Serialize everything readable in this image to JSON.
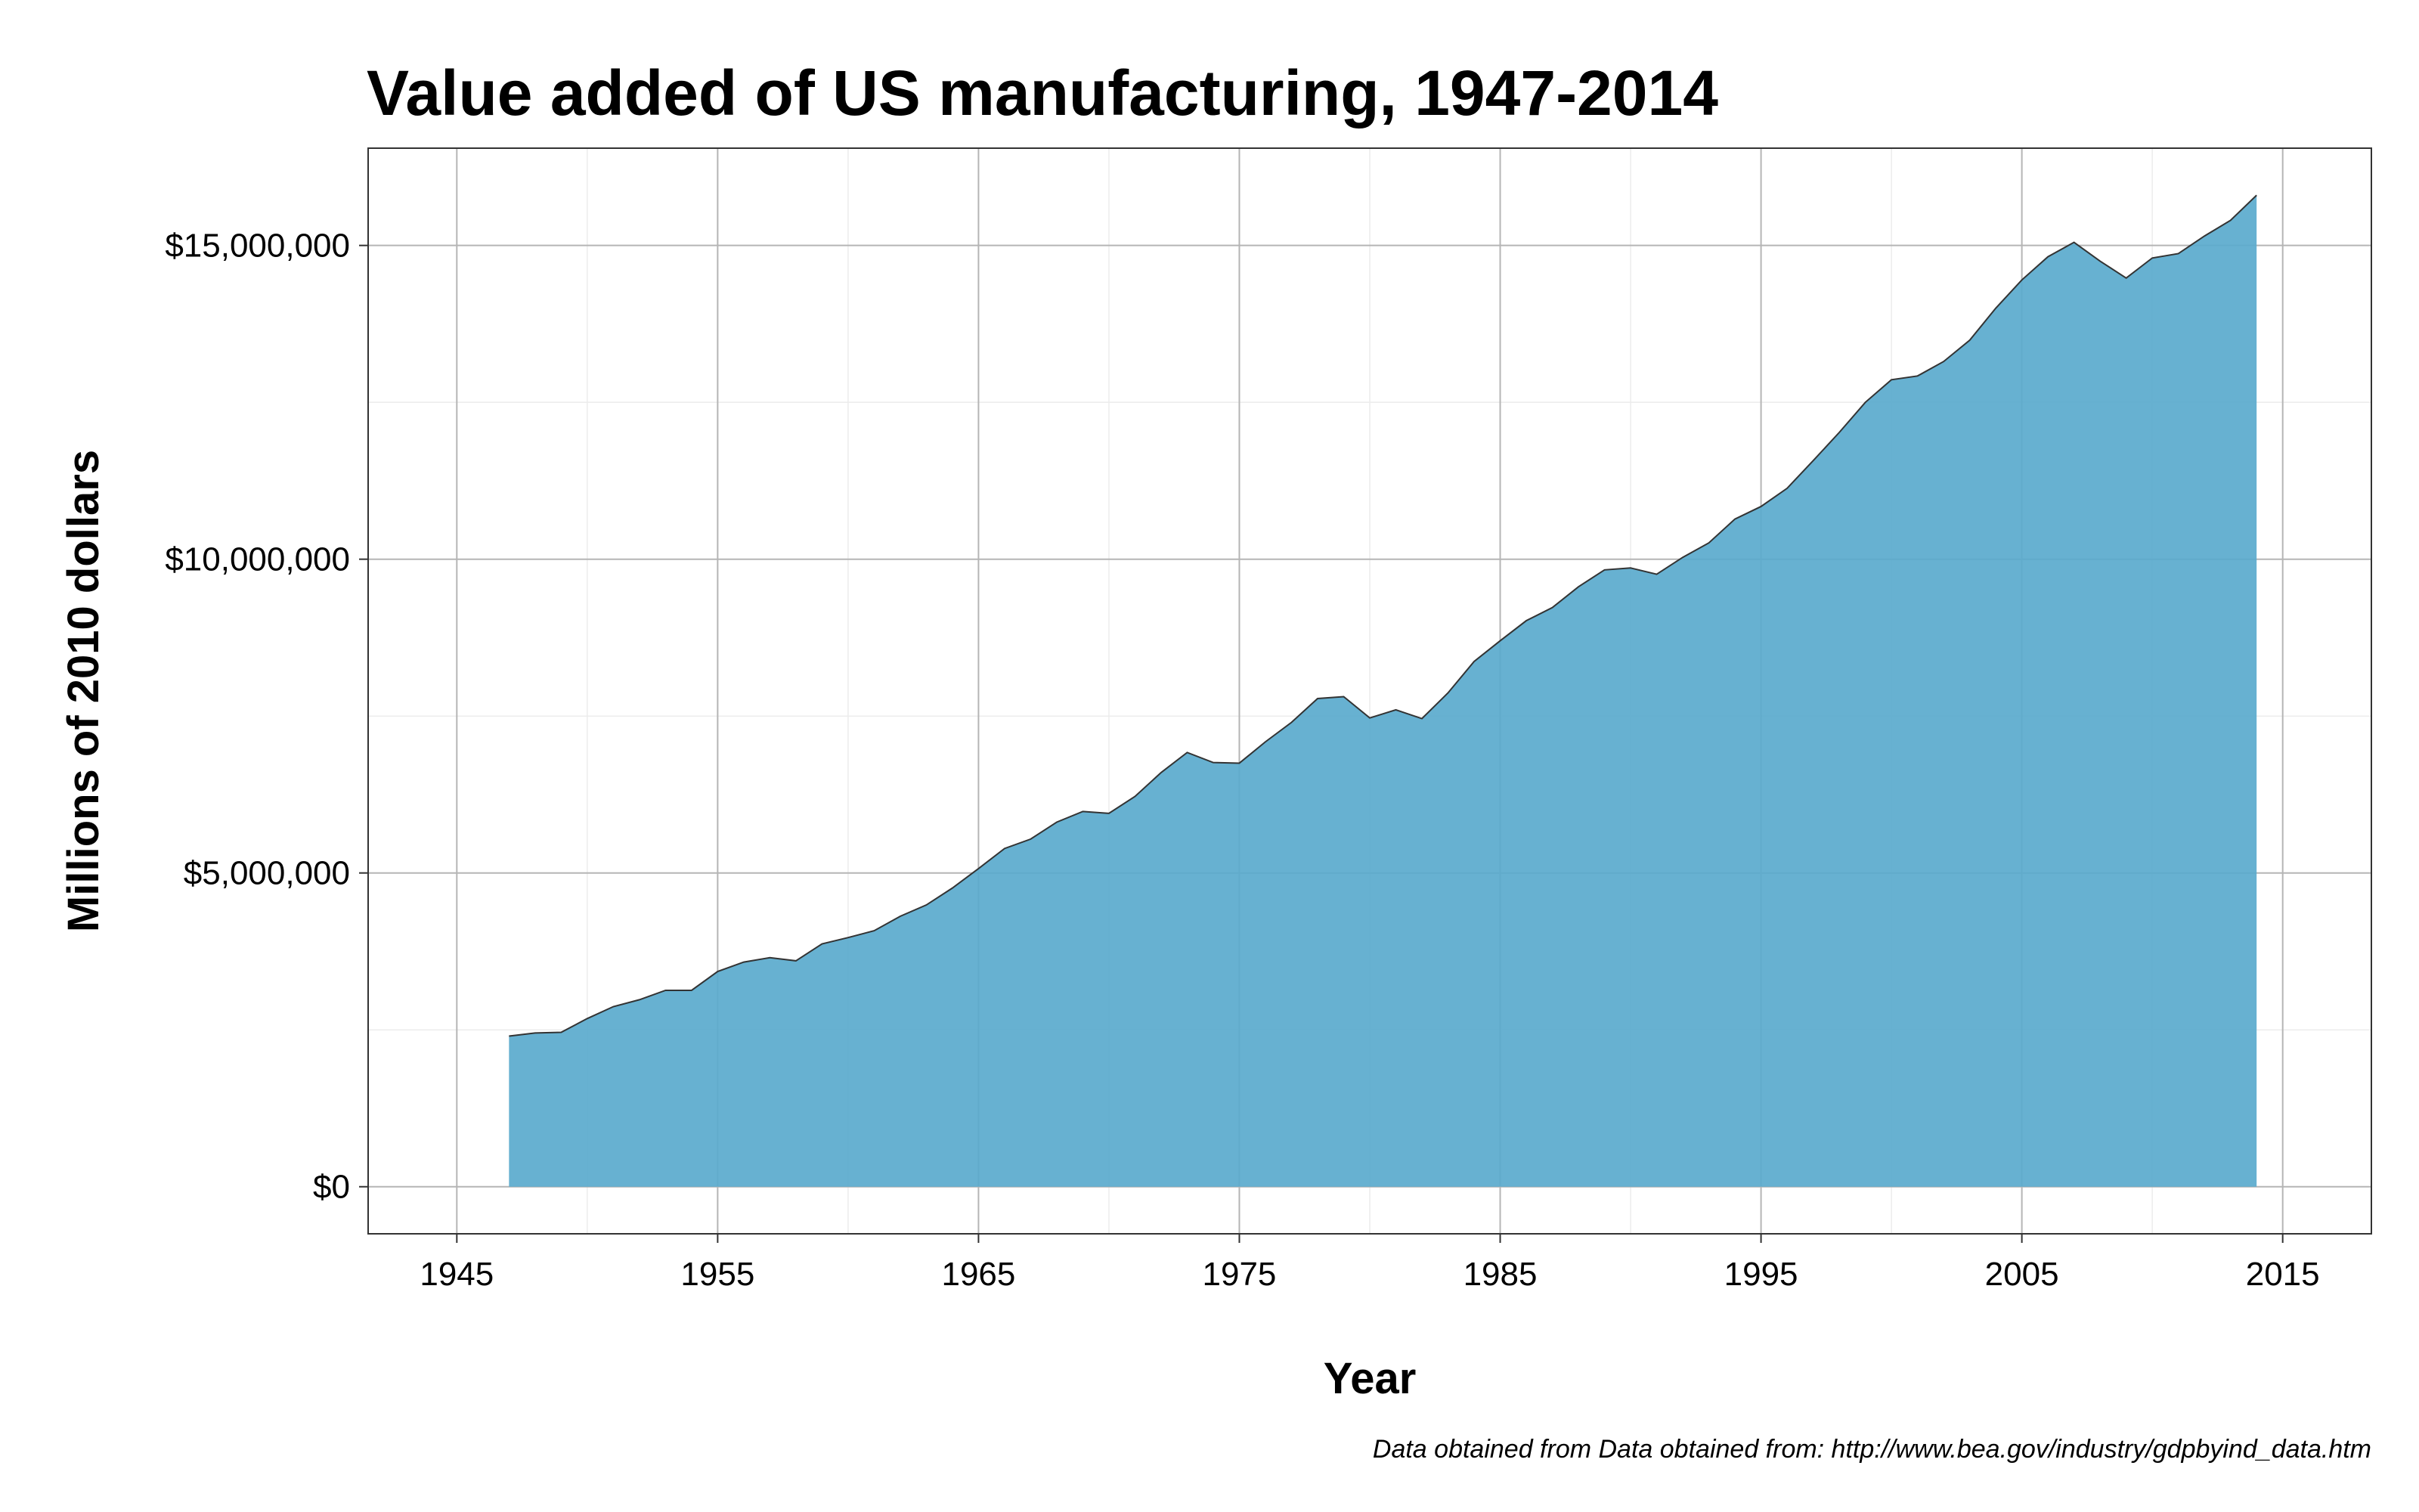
{
  "chart_data": {
    "type": "area",
    "title": "Value added of US manufacturing, 1947-2014",
    "xlabel": "Year",
    "ylabel": "Millions of 2010 dollars",
    "caption": "Data obtained from Data obtained from: http://www.bea.gov/industry/gdpbyind_data.htm",
    "xlim": [
      1941.6,
      2018.4
    ],
    "ylim": [
      -750000,
      16550000
    ],
    "x_ticks": [
      1945,
      1955,
      1965,
      1975,
      1985,
      1995,
      2005,
      2015
    ],
    "x_tick_labels": [
      "1945",
      "1955",
      "1965",
      "1975",
      "1985",
      "1995",
      "2005",
      "2015"
    ],
    "y_ticks": [
      0,
      5000000,
      10000000,
      15000000
    ],
    "y_tick_labels": [
      "$0",
      "$5,000,000",
      "$10,000,000",
      "$15,000,000"
    ],
    "grid": true,
    "fill_color": "#5aaacd",
    "line_color": "#333333",
    "series": [
      {
        "x": [
          1947,
          1948,
          1949,
          1950,
          1951,
          1952,
          1953,
          1954,
          1955,
          1956,
          1957,
          1958,
          1959,
          1960,
          1961,
          1962,
          1963,
          1964,
          1965,
          1966,
          1967,
          1968,
          1969,
          1970,
          1971,
          1972,
          1973,
          1974,
          1975,
          1976,
          1977,
          1978,
          1979,
          1980,
          1981,
          1982,
          1983,
          1984,
          1985,
          1986,
          1987,
          1988,
          1989,
          1990,
          1991,
          1992,
          1993,
          1994,
          1995,
          1996,
          1997,
          1998,
          1999,
          2000,
          2001,
          2002,
          2003,
          2004,
          2005,
          2006,
          2007,
          2008,
          2009,
          2010,
          2011,
          2012,
          2013,
          2014
        ],
        "values": [
          2400000,
          2450000,
          2460000,
          2680000,
          2870000,
          2980000,
          3130000,
          3130000,
          3430000,
          3580000,
          3650000,
          3600000,
          3870000,
          3970000,
          4080000,
          4310000,
          4490000,
          4760000,
          5070000,
          5390000,
          5540000,
          5810000,
          5980000,
          5950000,
          6220000,
          6600000,
          6920000,
          6760000,
          6750000,
          7090000,
          7400000,
          7780000,
          7810000,
          7470000,
          7600000,
          7460000,
          7870000,
          8370000,
          8700000,
          9020000,
          9230000,
          9560000,
          9830000,
          9860000,
          9760000,
          10030000,
          10260000,
          10640000,
          10840000,
          11130000,
          11570000,
          12020000,
          12500000,
          12860000,
          12920000,
          13150000,
          13490000,
          14000000,
          14450000,
          14820000,
          15050000,
          14750000,
          14480000,
          14800000,
          14870000,
          15150000,
          15400000,
          15800000
        ]
      }
    ]
  }
}
